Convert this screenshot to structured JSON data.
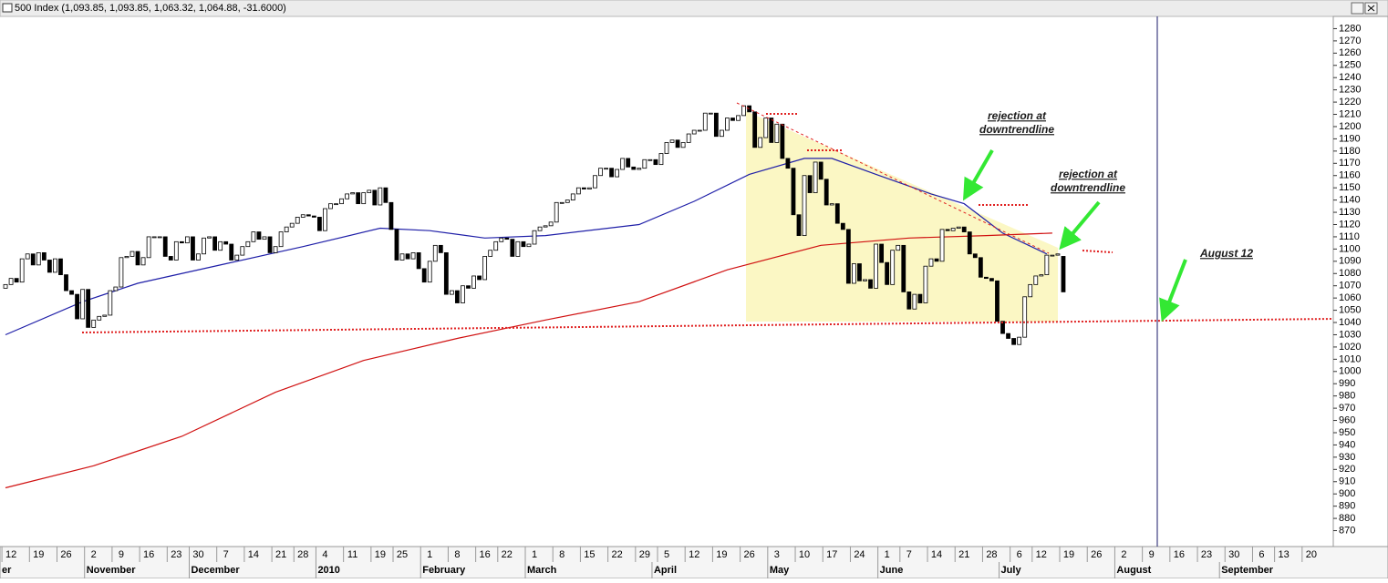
{
  "chart_data": {
    "type": "candlestick",
    "title": "500 Index (1,093.85, 1,093.85, 1,063.32, 1,064.88, -31.6000)",
    "open": [
      1068,
      1071,
      1076,
      1073,
      1092,
      1096,
      1087,
      1097,
      1091,
      1081,
      1092,
      1079,
      1066,
      1063,
      1043,
      1067,
      1036,
      1042,
      1045,
      1046,
      1066,
      1069,
      1093,
      1094,
      1098,
      1087,
      1093,
      1110,
      1110,
      1110,
      1094,
      1091,
      1106,
      1105,
      1110,
      1091,
      1096,
      1109,
      1110,
      1099,
      1106,
      1104,
      1091,
      1095,
      1102,
      1106,
      1114,
      1108,
      1110,
      1097,
      1102,
      1114,
      1118,
      1121,
      1126,
      1128,
      1127,
      1126,
      1115,
      1133,
      1137,
      1137,
      1141,
      1145,
      1146,
      1137,
      1146,
      1148,
      1136,
      1150,
      1138,
      1116,
      1091,
      1096,
      1092,
      1097,
      1084,
      1073,
      1090,
      1103,
      1097,
      1063,
      1066,
      1056,
      1070,
      1068,
      1078,
      1075,
      1094,
      1099,
      1106,
      1109,
      1108,
      1094,
      1106,
      1102,
      1104,
      1115,
      1118,
      1119,
      1122,
      1138,
      1138,
      1140,
      1145,
      1150,
      1149,
      1150,
      1160,
      1166,
      1166,
      1159,
      1165,
      1174,
      1167,
      1165,
      1166,
      1173,
      1173,
      1169,
      1178,
      1187,
      1189,
      1183,
      1187,
      1194,
      1197,
      1197,
      1211,
      1211,
      1192,
      1197,
      1207,
      1205,
      1209,
      1217,
      1212,
      1183,
      1191,
      1207,
      1187,
      1202,
      1174,
      1166,
      1128,
      1111,
      1160,
      1146,
      1171,
      1157,
      1136,
      1137,
      1121,
      1116,
      1072,
      1088,
      1074,
      1075,
      1068,
      1104,
      1089,
      1071,
      1099,
      1103,
      1065,
      1051,
      1063,
      1056,
      1086,
      1092,
      1090,
      1116,
      1115,
      1117,
      1118,
      1114,
      1096,
      1093,
      1077,
      1076,
      1074,
      1041,
      1031,
      1027,
      1022,
      1028,
      1061,
      1071,
      1078,
      1079,
      1095,
      1095,
      1094
    ],
    "close": [
      1071,
      1076,
      1073,
      1092,
      1096,
      1087,
      1097,
      1091,
      1081,
      1092,
      1079,
      1066,
      1063,
      1043,
      1067,
      1036,
      1042,
      1045,
      1046,
      1066,
      1069,
      1093,
      1094,
      1098,
      1087,
      1093,
      1110,
      1110,
      1110,
      1094,
      1091,
      1106,
      1105,
      1110,
      1091,
      1096,
      1109,
      1110,
      1099,
      1106,
      1104,
      1091,
      1095,
      1102,
      1106,
      1114,
      1108,
      1110,
      1097,
      1102,
      1114,
      1118,
      1121,
      1126,
      1128,
      1127,
      1126,
      1115,
      1133,
      1137,
      1137,
      1141,
      1145,
      1146,
      1137,
      1146,
      1148,
      1136,
      1150,
      1138,
      1116,
      1091,
      1096,
      1092,
      1097,
      1084,
      1073,
      1090,
      1103,
      1097,
      1063,
      1066,
      1056,
      1070,
      1068,
      1078,
      1075,
      1094,
      1099,
      1106,
      1109,
      1108,
      1094,
      1106,
      1102,
      1104,
      1115,
      1118,
      1119,
      1122,
      1138,
      1138,
      1140,
      1145,
      1150,
      1149,
      1150,
      1160,
      1166,
      1166,
      1159,
      1165,
      1174,
      1167,
      1165,
      1166,
      1173,
      1173,
      1169,
      1178,
      1187,
      1189,
      1183,
      1187,
      1194,
      1197,
      1197,
      1211,
      1211,
      1192,
      1197,
      1207,
      1205,
      1209,
      1217,
      1212,
      1183,
      1191,
      1207,
      1187,
      1202,
      1174,
      1166,
      1128,
      1111,
      1160,
      1146,
      1171,
      1157,
      1136,
      1137,
      1121,
      1116,
      1072,
      1088,
      1074,
      1075,
      1068,
      1104,
      1089,
      1071,
      1099,
      1103,
      1065,
      1051,
      1063,
      1056,
      1086,
      1092,
      1090,
      1116,
      1115,
      1117,
      1118,
      1114,
      1096,
      1093,
      1077,
      1076,
      1074,
      1041,
      1031,
      1027,
      1022,
      1028,
      1061,
      1071,
      1078,
      1079,
      1095,
      1095,
      1096,
      1065
    ],
    "series": [
      {
        "color": "#1f1fa8",
        "x": [
          0,
          14,
          24,
          40,
          54,
          68,
          77,
          87,
          98,
          115,
          125,
          135,
          145,
          150,
          158,
          168,
          174,
          181,
          189
        ],
        "values": [
          1030,
          1057,
          1072,
          1088,
          1102,
          1117,
          1115,
          1109,
          1111,
          1120,
          1139,
          1161,
          1174,
          1174,
          1161,
          1145,
          1137,
          1113,
          1096
        ]
      },
      {
        "color": "#d01010",
        "x": [
          0,
          16,
          32,
          49,
          65,
          82,
          98,
          115,
          131,
          148,
          164,
          178,
          190
        ],
        "values": [
          905,
          923,
          947,
          983,
          1009,
          1027,
          1042,
          1057,
          1083,
          1103,
          1109,
          1111,
          1113
        ]
      }
    ],
    "xlim": [
      -1,
      241
    ],
    "ylim": [
      857,
      1290
    ],
    "yticks": [
      870,
      880,
      890,
      900,
      910,
      920,
      930,
      940,
      950,
      960,
      970,
      980,
      990,
      1000,
      1010,
      1020,
      1030,
      1040,
      1050,
      1060,
      1070,
      1080,
      1090,
      1100,
      1110,
      1120,
      1130,
      1140,
      1150,
      1160,
      1170,
      1180,
      1190,
      1200,
      1210,
      1220,
      1230,
      1240,
      1250,
      1260,
      1270,
      1280
    ],
    "xticks": [
      {
        "value": 1,
        "label": "12"
      },
      {
        "value": 6,
        "label": "19"
      },
      {
        "value": 11,
        "label": "26"
      },
      {
        "value": 16,
        "label": "2"
      },
      {
        "value": 21,
        "label": "9"
      },
      {
        "value": 26,
        "label": "16"
      },
      {
        "value": 31,
        "label": "23"
      },
      {
        "value": 35,
        "label": "30"
      },
      {
        "value": 40,
        "label": "7"
      },
      {
        "value": 45,
        "label": "14"
      },
      {
        "value": 50,
        "label": "21"
      },
      {
        "value": 54,
        "label": "28"
      },
      {
        "value": 58,
        "label": "4"
      },
      {
        "value": 63,
        "label": "11"
      },
      {
        "value": 68,
        "label": "19"
      },
      {
        "value": 72,
        "label": "25"
      },
      {
        "value": 77,
        "label": "1"
      },
      {
        "value": 82,
        "label": "8"
      },
      {
        "value": 87,
        "label": "16"
      },
      {
        "value": 91,
        "label": "22"
      },
      {
        "value": 96,
        "label": "1"
      },
      {
        "value": 101,
        "label": "8"
      },
      {
        "value": 106,
        "label": "15"
      },
      {
        "value": 111,
        "label": "22"
      },
      {
        "value": 116,
        "label": "29"
      },
      {
        "value": 120,
        "label": "5"
      },
      {
        "value": 125,
        "label": "12"
      },
      {
        "value": 130,
        "label": "19"
      },
      {
        "value": 135,
        "label": "26"
      },
      {
        "value": 140,
        "label": "3"
      },
      {
        "value": 145,
        "label": "10"
      },
      {
        "value": 150,
        "label": "17"
      },
      {
        "value": 155,
        "label": "24"
      },
      {
        "value": 160,
        "label": "1"
      },
      {
        "value": 164,
        "label": "7"
      },
      {
        "value": 169,
        "label": "14"
      },
      {
        "value": 174,
        "label": "21"
      },
      {
        "value": 179,
        "label": "28"
      },
      {
        "value": 184,
        "label": "6"
      },
      {
        "value": 188,
        "label": "12"
      },
      {
        "value": 193,
        "label": "19"
      },
      {
        "value": 198,
        "label": "26"
      },
      {
        "value": 203,
        "label": "2"
      },
      {
        "value": 208,
        "label": "9"
      },
      {
        "value": 213,
        "label": "16"
      },
      {
        "value": 218,
        "label": "23"
      },
      {
        "value": 223,
        "label": "30"
      },
      {
        "value": 228,
        "label": "6"
      },
      {
        "value": 232,
        "label": "13"
      },
      {
        "value": 237,
        "label": "20"
      }
    ],
    "month_labels": [
      {
        "value": -1,
        "label": "er"
      },
      {
        "value": 16,
        "label": "November"
      },
      {
        "value": 35,
        "label": "December"
      },
      {
        "value": 58,
        "label": "2010"
      },
      {
        "value": 77,
        "label": "February"
      },
      {
        "value": 96,
        "label": "March"
      },
      {
        "value": 119,
        "label": "April"
      },
      {
        "value": 140,
        "label": "May"
      },
      {
        "value": 160,
        "label": "June"
      },
      {
        "value": 182,
        "label": "July"
      },
      {
        "value": 203,
        "label": "August"
      },
      {
        "value": 222,
        "label": "September"
      }
    ],
    "annotations": [
      "rejection at",
      "downtrendline",
      "rejection at",
      "downtrendline",
      "August 12"
    ]
  }
}
